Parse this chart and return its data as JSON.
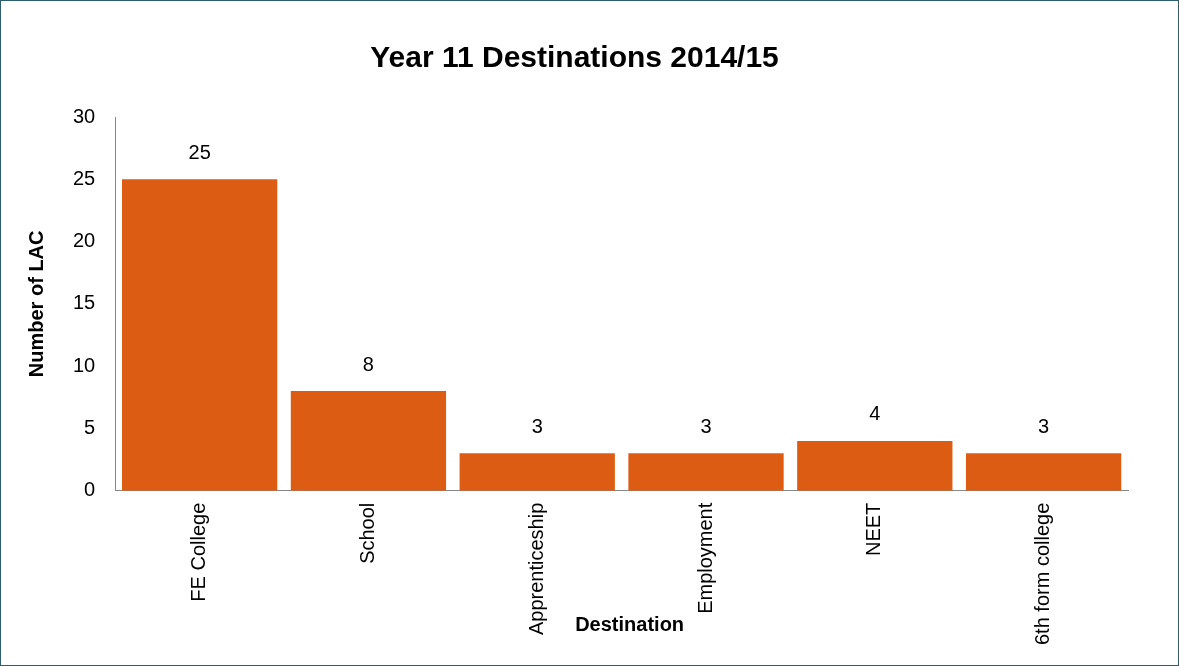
{
  "chart_data": {
    "type": "bar",
    "title": "Year 11 Destinations 2014/15",
    "xlabel": "Destination",
    "ylabel": "Number of LAC",
    "categories": [
      "FE College",
      "School",
      "Apprenticeship",
      "Employment",
      "NEET",
      "6th form college"
    ],
    "values": [
      25,
      8,
      3,
      3,
      4,
      3
    ],
    "color": "#dd5c14",
    "ylim": [
      0,
      30
    ],
    "yticks": [
      0,
      5,
      10,
      15,
      20,
      25,
      30
    ],
    "grid": false,
    "legend": false,
    "data_labels": true
  }
}
